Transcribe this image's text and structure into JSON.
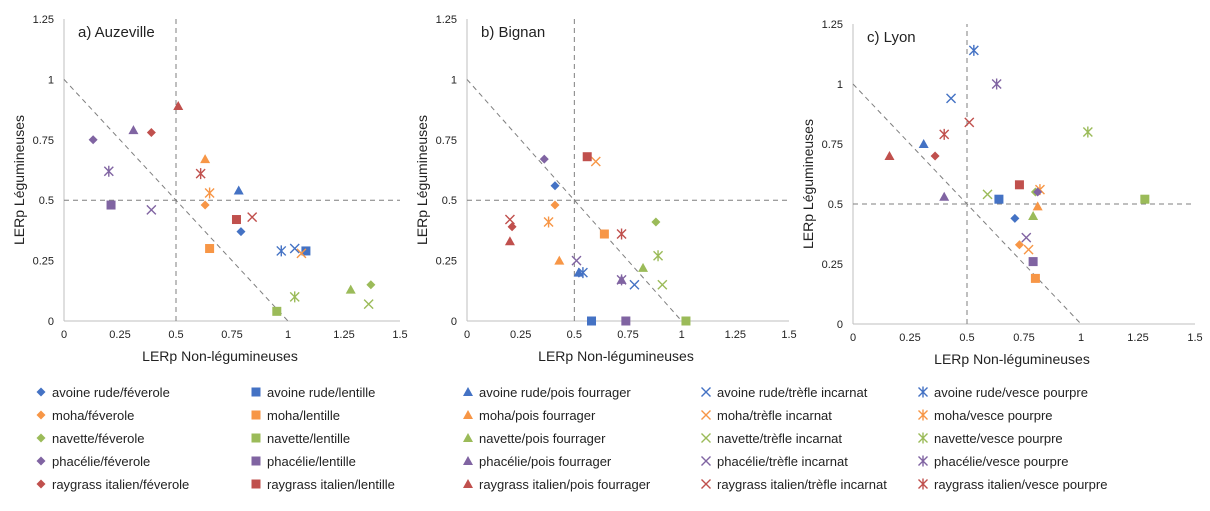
{
  "palette": {
    "avoine rude": "#4472C4",
    "moha": "#F79646",
    "navette": "#9BBB59",
    "phacélie": "#8064A2",
    "raygrass italien": "#C0504D"
  },
  "legend": {
    "columns": [
      "féverole",
      "lentille",
      "pois fourrager",
      "trèfle incarnat",
      "vesce pourpre"
    ],
    "rows": [
      "avoine rude",
      "moha",
      "navette",
      "phacélie",
      "raygrass italien"
    ],
    "markers": {
      "féverole": "diamond",
      "lentille": "square",
      "pois fourrager": "triangle",
      "trèfle incarnat": "x",
      "vesce pourpre": "asterisk"
    }
  },
  "chart_data": [
    {
      "type": "scatter",
      "title": "a) Auzeville",
      "xlabel": "LERp Non-légumineuses",
      "ylabel": "LERp Légumineuses",
      "xlim": [
        0,
        1.5
      ],
      "ylim": [
        0,
        1.25
      ],
      "xticks": [
        "0",
        "0.25",
        "0.5",
        "0.75",
        "1",
        "1.25",
        "1.5"
      ],
      "yticks": [
        "0",
        "0.25",
        "0.5",
        "0.75",
        "1",
        "1.25"
      ],
      "reference_lines": {
        "x": 0.5,
        "y": 0.5,
        "diagonal": [
          [
            0,
            1
          ],
          [
            1,
            0
          ]
        ]
      },
      "series": [
        {
          "name": "avoine rude/féverole",
          "x": 0.79,
          "y": 0.37
        },
        {
          "name": "avoine rude/lentille",
          "x": 1.08,
          "y": 0.29
        },
        {
          "name": "avoine rude/pois fourrager",
          "x": 0.78,
          "y": 0.54
        },
        {
          "name": "avoine rude/trèfle incarnat",
          "x": 1.03,
          "y": 0.3
        },
        {
          "name": "avoine rude/vesce pourpre",
          "x": 0.97,
          "y": 0.29
        },
        {
          "name": "moha/féverole",
          "x": 0.63,
          "y": 0.48
        },
        {
          "name": "moha/lentille",
          "x": 0.65,
          "y": 0.3
        },
        {
          "name": "moha/pois fourrager",
          "x": 0.63,
          "y": 0.67
        },
        {
          "name": "moha/trèfle incarnat",
          "x": 1.06,
          "y": 0.28
        },
        {
          "name": "moha/vesce pourpre",
          "x": 0.65,
          "y": 0.53
        },
        {
          "name": "navette/féverole",
          "x": 1.37,
          "y": 0.15
        },
        {
          "name": "navette/lentille",
          "x": 0.95,
          "y": 0.04
        },
        {
          "name": "navette/pois fourrager",
          "x": 1.28,
          "y": 0.13
        },
        {
          "name": "navette/trèfle incarnat",
          "x": 1.36,
          "y": 0.07
        },
        {
          "name": "navette/vesce pourpre",
          "x": 1.03,
          "y": 0.1
        },
        {
          "name": "phacélie/féverole",
          "x": 0.13,
          "y": 0.75
        },
        {
          "name": "phacélie/lentille",
          "x": 0.21,
          "y": 0.48
        },
        {
          "name": "phacélie/pois fourrager",
          "x": 0.31,
          "y": 0.79
        },
        {
          "name": "phacélie/trèfle incarnat",
          "x": 0.39,
          "y": 0.46
        },
        {
          "name": "phacélie/vesce pourpre",
          "x": 0.2,
          "y": 0.62
        },
        {
          "name": "raygrass italien/féverole",
          "x": 0.39,
          "y": 0.78
        },
        {
          "name": "raygrass italien/lentille",
          "x": 0.77,
          "y": 0.42
        },
        {
          "name": "raygrass italien/pois fourrager",
          "x": 0.51,
          "y": 0.89
        },
        {
          "name": "raygrass italien/trèfle incarnat",
          "x": 0.84,
          "y": 0.43
        },
        {
          "name": "raygrass italien/vesce pourpre",
          "x": 0.61,
          "y": 0.61
        }
      ]
    },
    {
      "type": "scatter",
      "title": "b) Bignan",
      "xlabel": "LERp Non-légumineuses",
      "ylabel": "LERp Légumineuses",
      "xlim": [
        0,
        1.5
      ],
      "ylim": [
        0,
        1.25
      ],
      "xticks": [
        "0",
        "0.25",
        "0.5",
        "0.75",
        "1",
        "1.25",
        "1.5"
      ],
      "yticks": [
        "0",
        "0.25",
        "0.5",
        "0.75",
        "1",
        "1.25"
      ],
      "reference_lines": {
        "x": 0.5,
        "y": 0.5,
        "diagonal": [
          [
            0,
            1
          ],
          [
            1,
            0
          ]
        ]
      },
      "series": [
        {
          "name": "avoine rude/féverole",
          "x": 0.41,
          "y": 0.56
        },
        {
          "name": "avoine rude/lentille",
          "x": 0.58,
          "y": 0.0
        },
        {
          "name": "avoine rude/pois fourrager",
          "x": 0.52,
          "y": 0.2
        },
        {
          "name": "avoine rude/trèfle incarnat",
          "x": 0.78,
          "y": 0.15
        },
        {
          "name": "avoine rude/vesce pourpre",
          "x": 0.54,
          "y": 0.2
        },
        {
          "name": "moha/féverole",
          "x": 0.41,
          "y": 0.48
        },
        {
          "name": "moha/lentille",
          "x": 0.64,
          "y": 0.36
        },
        {
          "name": "moha/pois fourrager",
          "x": 0.43,
          "y": 0.25
        },
        {
          "name": "moha/trèfle incarnat",
          "x": 0.6,
          "y": 0.66
        },
        {
          "name": "moha/vesce pourpre",
          "x": 0.38,
          "y": 0.41
        },
        {
          "name": "navette/féverole",
          "x": 0.88,
          "y": 0.41
        },
        {
          "name": "navette/lentille",
          "x": 1.02,
          "y": 0.0
        },
        {
          "name": "navette/pois fourrager",
          "x": 0.82,
          "y": 0.22
        },
        {
          "name": "navette/trèfle incarnat",
          "x": 0.91,
          "y": 0.15
        },
        {
          "name": "navette/vesce pourpre",
          "x": 0.89,
          "y": 0.27
        },
        {
          "name": "phacélie/féverole",
          "x": 0.36,
          "y": 0.67
        },
        {
          "name": "phacélie/lentille",
          "x": 0.74,
          "y": 0.0
        },
        {
          "name": "phacélie/pois fourrager",
          "x": 0.72,
          "y": 0.17
        },
        {
          "name": "phacélie/trèfle incarnat",
          "x": 0.51,
          "y": 0.25
        },
        {
          "name": "phacélie/vesce pourpre",
          "x": 0.72,
          "y": 0.17
        },
        {
          "name": "raygrass italien/féverole",
          "x": 0.21,
          "y": 0.39
        },
        {
          "name": "raygrass italien/lentille",
          "x": 0.56,
          "y": 0.68
        },
        {
          "name": "raygrass italien/pois fourrager",
          "x": 0.2,
          "y": 0.33
        },
        {
          "name": "raygrass italien/trèfle incarnat",
          "x": 0.2,
          "y": 0.42
        },
        {
          "name": "raygrass italien/vesce pourpre",
          "x": 0.72,
          "y": 0.36
        }
      ]
    },
    {
      "type": "scatter",
      "title": "c) Lyon",
      "xlabel": "LERp Non-légumineuses",
      "ylabel": "LERp Légumineuses",
      "xlim": [
        0,
        1.5
      ],
      "ylim": [
        0,
        1.25
      ],
      "xticks": [
        "0",
        "0.25",
        "0.5",
        "0.75",
        "1",
        "1.25",
        "1.5"
      ],
      "yticks": [
        "0",
        "0.25",
        "0.5",
        "0.75",
        "1",
        "1.25"
      ],
      "reference_lines": {
        "x": 0.5,
        "y": 0.5,
        "diagonal": [
          [
            0,
            1
          ],
          [
            1,
            0
          ]
        ]
      },
      "series": [
        {
          "name": "avoine rude/féverole",
          "x": 0.71,
          "y": 0.44
        },
        {
          "name": "avoine rude/lentille",
          "x": 0.64,
          "y": 0.52
        },
        {
          "name": "avoine rude/pois fourrager",
          "x": 0.31,
          "y": 0.75
        },
        {
          "name": "avoine rude/trèfle incarnat",
          "x": 0.43,
          "y": 0.94
        },
        {
          "name": "avoine rude/vesce pourpre",
          "x": 0.53,
          "y": 1.14
        },
        {
          "name": "moha/féverole",
          "x": 0.73,
          "y": 0.33
        },
        {
          "name": "moha/lentille",
          "x": 0.8,
          "y": 0.19
        },
        {
          "name": "moha/pois fourrager",
          "x": 0.81,
          "y": 0.49
        },
        {
          "name": "moha/trèfle incarnat",
          "x": 0.77,
          "y": 0.31
        },
        {
          "name": "moha/vesce pourpre",
          "x": 0.82,
          "y": 0.56
        },
        {
          "name": "navette/féverole",
          "x": 0.8,
          "y": 0.55
        },
        {
          "name": "navette/lentille",
          "x": 1.28,
          "y": 0.52
        },
        {
          "name": "navette/pois fourrager",
          "x": 0.79,
          "y": 0.45
        },
        {
          "name": "navette/trèfle incarnat",
          "x": 0.59,
          "y": 0.54
        },
        {
          "name": "navette/vesce pourpre",
          "x": 1.03,
          "y": 0.8
        },
        {
          "name": "phacélie/féverole",
          "x": 0.81,
          "y": 0.55
        },
        {
          "name": "phacélie/lentille",
          "x": 0.79,
          "y": 0.26
        },
        {
          "name": "phacélie/pois fourrager",
          "x": 0.4,
          "y": 0.53
        },
        {
          "name": "phacélie/trèfle incarnat",
          "x": 0.76,
          "y": 0.36
        },
        {
          "name": "phacélie/vesce pourpre",
          "x": 0.63,
          "y": 1.0
        },
        {
          "name": "raygrass italien/féverole",
          "x": 0.36,
          "y": 0.7
        },
        {
          "name": "raygrass italien/lentille",
          "x": 0.73,
          "y": 0.58
        },
        {
          "name": "raygrass italien/pois fourrager",
          "x": 0.16,
          "y": 0.7
        },
        {
          "name": "raygrass italien/trèfle incarnat",
          "x": 0.51,
          "y": 0.84
        },
        {
          "name": "raygrass italien/vesce pourpre",
          "x": 0.4,
          "y": 0.79
        }
      ]
    }
  ]
}
